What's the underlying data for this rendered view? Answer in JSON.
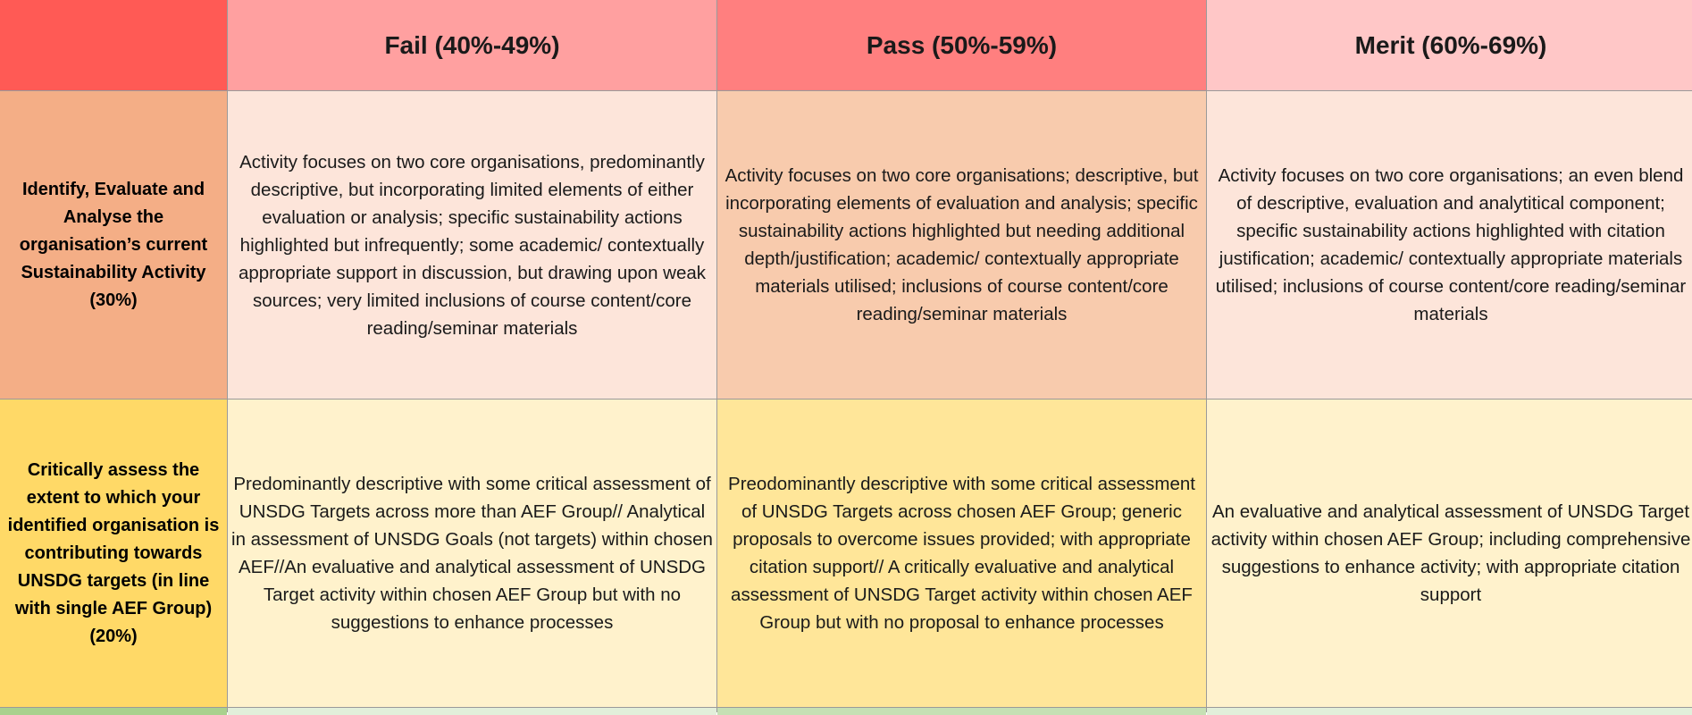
{
  "header": {
    "corner": "",
    "bands": [
      "Fail (40%-49%)",
      "Pass (50%-59%)",
      "Merit (60%-69%)"
    ]
  },
  "rows": [
    {
      "criterion": "Identify, Evaluate and Analyse the organisation’s current Sustainability Activity (30%)",
      "fail": "Activity focuses on two core organisations, predominantly descriptive, but incorporating limited elements of either evaluation or analysis; specific sustainability actions highlighted but infrequently; some academic/ contextually appropriate support in discussion, but drawing upon weak sources; very limited inclusions of course content/core reading/seminar materials",
      "pass": "Activity focuses on two core organisations; descriptive, but incorporating elements of evaluation and analysis; specific sustainability actions highlighted but needing additional depth/justification; academic/ contextually appropriate materials utilised; inclusions of course content/core reading/seminar materials",
      "merit": "Activity focuses on two core organisations; an even blend of descriptive, evaluation and analytitical component; specific sustainability actions highlighted with citation justification; academic/ contextually appropriate materials utilised; inclusions of course content/core reading/seminar materials"
    },
    {
      "criterion": "Critically assess the extent to which your identified organisation is contributing towards UNSDG targets (in line with single AEF Group) (20%)",
      "fail": "Predominantly descriptive with some critical assessment of UNSDG Targets across more than AEF Group// Analytical in assessment of UNSDG Goals (not targets) within chosen AEF//An evaluative and analytical assessment of UNSDG Target activity within chosen AEF Group but with no suggestions to enhance processes",
      "pass": "Preodominantly descriptive with some critical assessment of UNSDG Targets across chosen AEF Group; generic proposals to overcome issues provided; with appropriate citation support// A critically evaluative and analytical assessment of UNSDG Target activity within chosen AEF Group but with no proposal to enhance processes",
      "merit": "An evaluative and analytical assessment of UNSDG Target activity within chosen AEF Group; including comprehensive suggestions to enhance activity; with appropriate citation support"
    }
  ],
  "colors": {
    "corner": "#ff5a55",
    "fail_header": "#ffa0a0",
    "pass_header": "#ff7f7f",
    "merit_header": "#ffc7c7",
    "row1_criterion": "#f4ae86",
    "row2_criterion": "#ffd967",
    "row3_criterion": "#a9d18e"
  }
}
